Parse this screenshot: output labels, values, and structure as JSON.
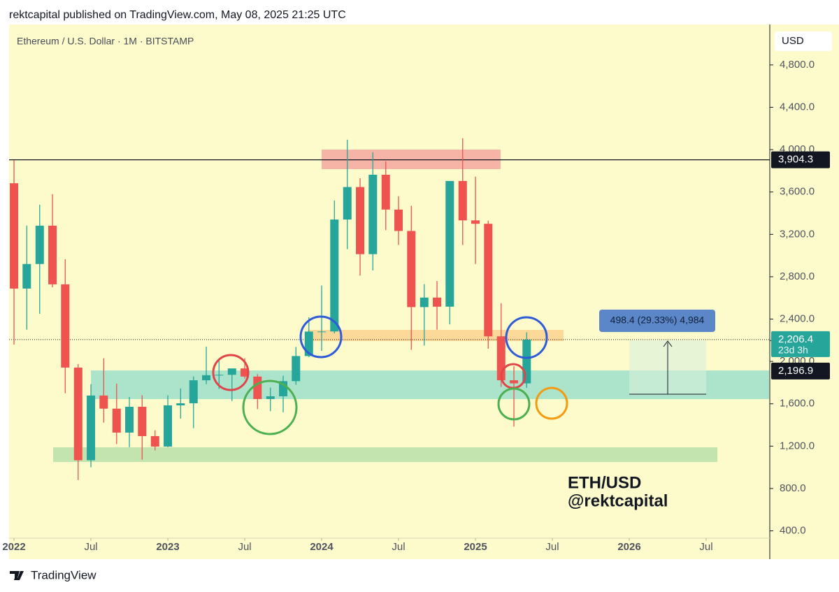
{
  "header": {
    "title": "rektcapital published on TradingView.com, May 08, 2025 21:25 UTC"
  },
  "footer": {
    "brand": "TradingView"
  },
  "chart_data": {
    "type": "candlestick",
    "title": "Ethereum / U.S. Dollar · 1M · BITSTAMP",
    "y_axis_label": "USD",
    "annotations": [
      "ETH/USD",
      "@rektcapital"
    ],
    "measure_label": "498.4 (29.33%) 4,984",
    "up_color": "#26a69a",
    "down_color": "#ef5350",
    "x": [
      2022,
      2022.083,
      2022.167,
      2022.25,
      2022.333,
      2022.417,
      2022.5,
      2022.583,
      2022.667,
      2022.75,
      2022.833,
      2022.917,
      2023,
      2023.083,
      2023.167,
      2023.25,
      2023.333,
      2023.417,
      2023.5,
      2023.583,
      2023.667,
      2023.75,
      2023.833,
      2023.917,
      2024,
      2024.083,
      2024.167,
      2024.25,
      2024.333,
      2024.417,
      2024.5,
      2024.583,
      2024.667,
      2024.75,
      2024.833,
      2024.917,
      2025,
      2025.083,
      2025.167,
      2025.25,
      2025.333
    ],
    "open": [
      3683,
      2688,
      2920,
      3282,
      2728,
      1942,
      1067,
      1678,
      1554,
      1328,
      1572,
      1295,
      1196,
      1585,
      1605,
      1822,
      1870,
      1874,
      1934,
      1857,
      1645,
      1671,
      1814,
      2051,
      2282,
      2283,
      3340,
      3647,
      3013,
      3763,
      3434,
      3232,
      2513,
      2603,
      2517,
      3704,
      3332,
      3300,
      2237,
      1822,
      1793
    ],
    "high": [
      3900,
      3283,
      3480,
      3580,
      2965,
      1975,
      1785,
      2030,
      1790,
      1665,
      1680,
      1350,
      1680,
      1745,
      1858,
      2140,
      2011,
      1930,
      2030,
      1880,
      1753,
      1865,
      2137,
      2417,
      2717,
      3520,
      4094,
      3730,
      3975,
      3890,
      3560,
      3470,
      2730,
      2760,
      3670,
      4108,
      3745,
      3330,
      2550,
      1955,
      2275
    ],
    "low": [
      2159,
      2300,
      2450,
      2700,
      1700,
      880,
      1000,
      1422,
      1220,
      1190,
      1073,
      1160,
      1190,
      1460,
      1370,
      1785,
      1740,
      1626,
      1838,
      1550,
      1530,
      1520,
      1780,
      2040,
      2100,
      2265,
      3060,
      2810,
      2860,
      3240,
      3100,
      2110,
      2150,
      2300,
      2350,
      3100,
      2920,
      2120,
      1760,
      1385,
      1750
    ],
    "close": [
      2688,
      2920,
      3282,
      2728,
      1942,
      1067,
      1678,
      1554,
      1328,
      1572,
      1295,
      1196,
      1585,
      1605,
      1822,
      1870,
      1874,
      1934,
      1857,
      1645,
      1671,
      1814,
      2051,
      2282,
      2283,
      3340,
      3647,
      3013,
      3763,
      3434,
      3232,
      2513,
      2603,
      2517,
      3704,
      3332,
      3300,
      2237,
      1822,
      1793,
      2206.4
    ],
    "xlim": [
      2021.968,
      2026.909
    ],
    "xticks": [
      2022,
      {
        "value": 2022.5,
        "label": "Jul"
      },
      2023,
      {
        "value": 2023.5,
        "label": "Jul"
      },
      2024,
      {
        "value": 2024.5,
        "label": "Jul"
      },
      2025,
      {
        "value": 2025.5,
        "label": "Jul"
      },
      2026,
      {
        "value": 2026.5,
        "label": "Jul"
      }
    ],
    "ylim": [
      331,
      5182
    ],
    "yticks": [
      {
        "value": 400,
        "label": "400.0"
      },
      {
        "value": 800,
        "label": "800.0"
      },
      {
        "value": 1200,
        "label": "1,200.0"
      },
      {
        "value": 1600,
        "label": "1,600.0"
      },
      {
        "value": 2000,
        "label": "2,000.0"
      },
      {
        "value": 2400,
        "label": "2,400.0"
      },
      {
        "value": 2800,
        "label": "2,800.0"
      },
      {
        "value": 3200,
        "label": "3,200.0"
      },
      {
        "value": 3600,
        "label": "3,600.0"
      },
      {
        "value": 4000,
        "label": "4,000.0"
      },
      {
        "value": 4400,
        "label": "4,400.0"
      },
      {
        "value": 4800,
        "label": "4,800.0"
      }
    ],
    "price_lines": [
      {
        "value": 3904.3,
        "label": "3,904.3",
        "color": "#131722",
        "style": "solid"
      },
      {
        "value": 2206.4,
        "label": "2,206.4",
        "countdown": "23d 3h",
        "color": "#26a69a",
        "style": "dotted"
      },
      {
        "value": 2196.9,
        "label": "2,196.9",
        "color": "#131722",
        "style": "none"
      }
    ]
  }
}
